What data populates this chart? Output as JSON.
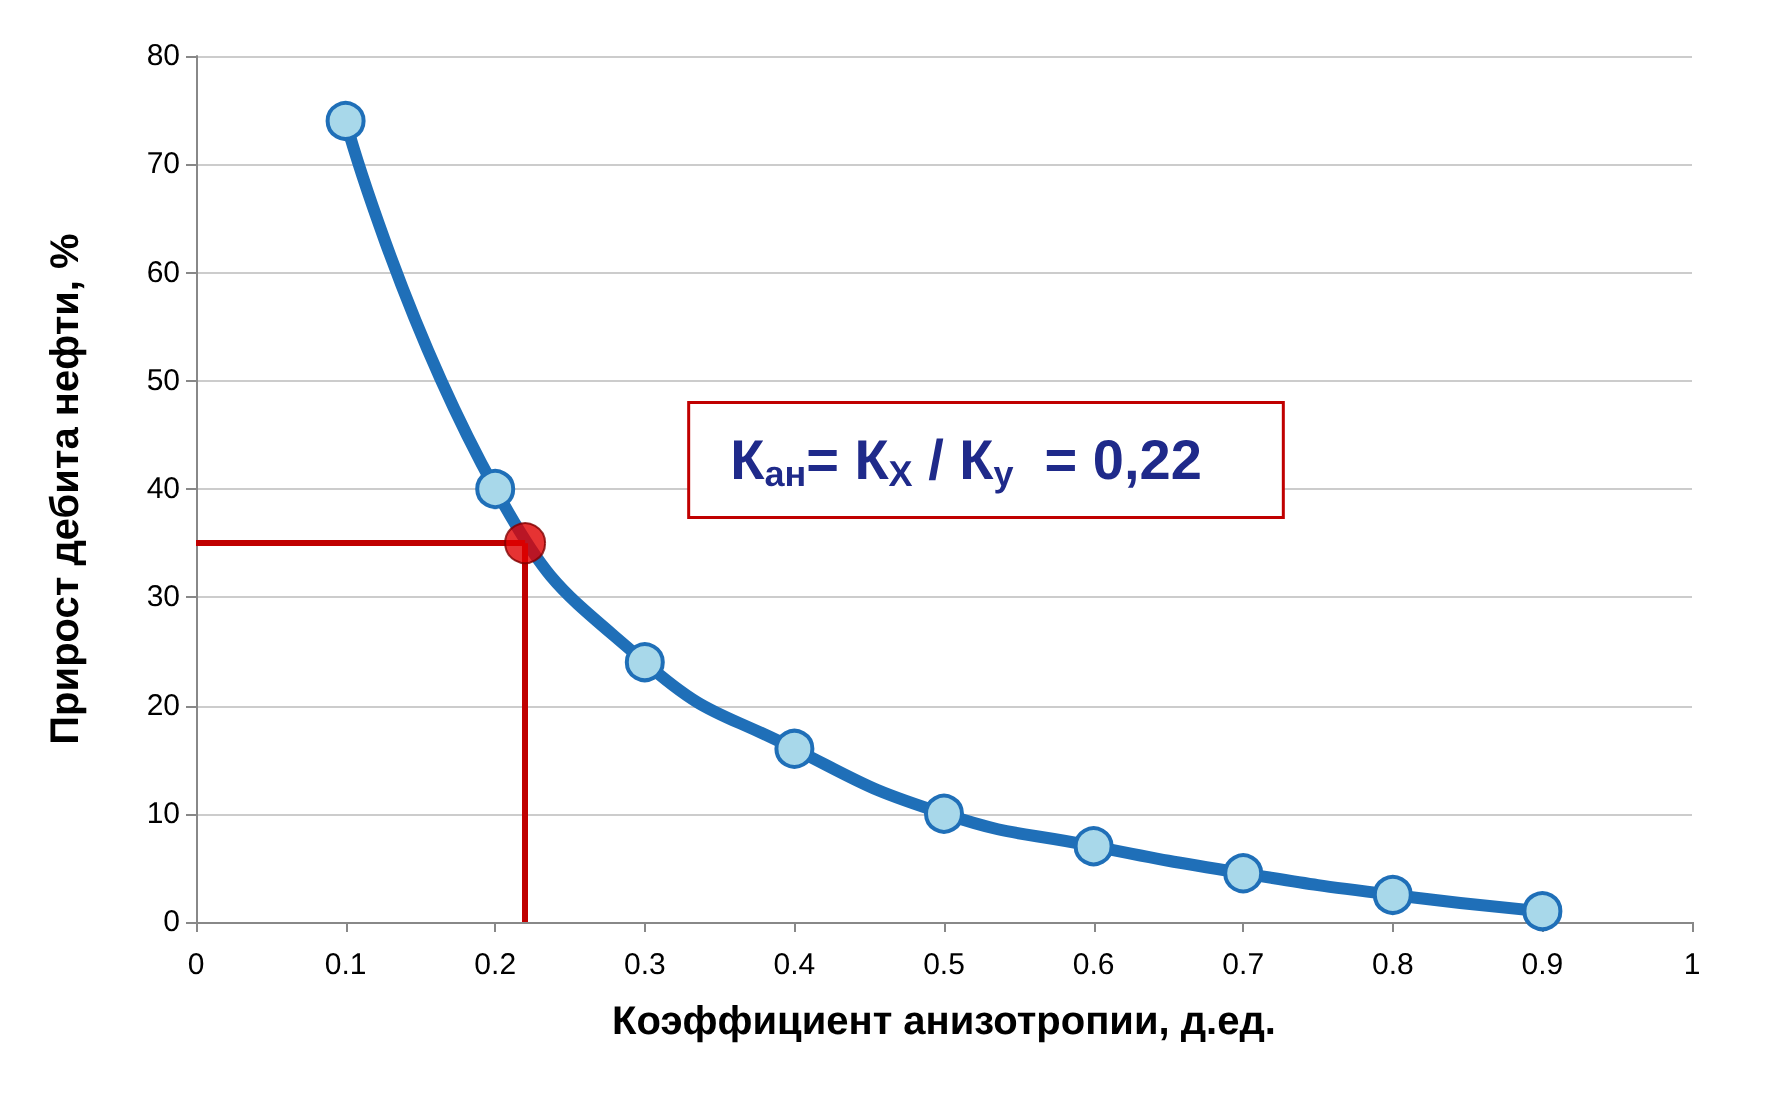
{
  "chart_data": {
    "type": "line",
    "xlabel": "Коэффициент анизотропии, д.ед.",
    "ylabel": "Прирост дебита нефти, %",
    "x": [
      0.1,
      0.2,
      0.3,
      0.4,
      0.5,
      0.6,
      0.7,
      0.8,
      0.9
    ],
    "series": [
      {
        "color": "#1f6fb8",
        "values": [
          74,
          40,
          24,
          16,
          10,
          7,
          4.5,
          2.5,
          1
        ]
      },
      {
        "type": "scatter",
        "color": "#e00000",
        "x": [
          0.22
        ],
        "values": [
          35
        ]
      }
    ],
    "marker": "circle",
    "line_style": "solid",
    "xlim": [
      0,
      1
    ],
    "xticks": [
      0,
      0.1,
      0.2,
      0.3,
      0.4,
      0.5,
      0.6,
      0.7,
      0.8,
      0.9,
      1
    ],
    "ylim": [
      0,
      80
    ],
    "yticks": [
      0,
      10,
      20,
      30,
      40,
      50,
      60,
      70,
      80
    ],
    "grid": "y",
    "ref_lines": [
      {
        "axis": "y",
        "value": 35,
        "color": "#c00000"
      },
      {
        "axis": "x",
        "value": 0.22,
        "color": "#c00000"
      }
    ],
    "annotations": [
      "К$_{ан}$= К$_{X}$ / К$_{y}$  = 0,22"
    ]
  }
}
